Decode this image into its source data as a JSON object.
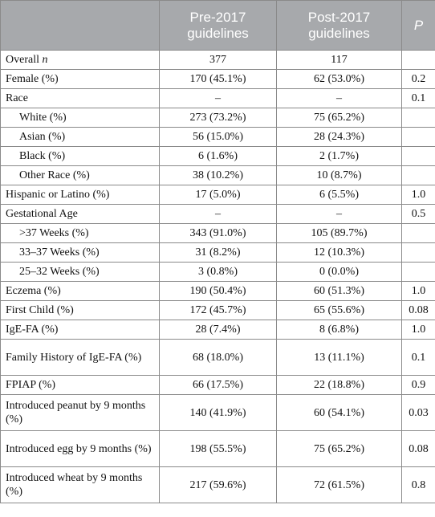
{
  "header": {
    "col1": "",
    "col2": "Pre-2017 guidelines",
    "col3": "Post-2017 guidelines",
    "col4": "P"
  },
  "rows": [
    {
      "label": "Overall ",
      "label_italic": "n",
      "pre": "377",
      "post": "117",
      "p": ""
    },
    {
      "label": "Female (%)",
      "pre": "170 (45.1%)",
      "post": "62 (53.0%)",
      "p": "0.2"
    },
    {
      "label": "Race",
      "pre": "–",
      "post": "–",
      "p": "0.1"
    },
    {
      "label": "White (%)",
      "pre": "273 (73.2%)",
      "post": "75 (65.2%)",
      "p": ""
    },
    {
      "label": "Asian (%)",
      "pre": "56 (15.0%)",
      "post": "28 (24.3%)",
      "p": ""
    },
    {
      "label": "Black (%)",
      "pre": "6 (1.6%)",
      "post": "2 (1.7%)",
      "p": ""
    },
    {
      "label": "Other Race (%)",
      "pre": "38 (10.2%)",
      "post": "10 (8.7%)",
      "p": ""
    },
    {
      "label": "Hispanic or Latino (%)",
      "pre": "17 (5.0%)",
      "post": "6 (5.5%)",
      "p": "1.0"
    },
    {
      "label": "Gestational Age",
      "pre": "–",
      "post": "–",
      "p": "0.5"
    },
    {
      "label": ">37 Weeks (%)",
      "pre": "343 (91.0%)",
      "post": "105 (89.7%)",
      "p": ""
    },
    {
      "label": "33–37 Weeks (%)",
      "pre": "31 (8.2%)",
      "post": "12 (10.3%)",
      "p": ""
    },
    {
      "label": "25–32 Weeks (%)",
      "pre": "3 (0.8%)",
      "post": "0 (0.0%)",
      "p": ""
    },
    {
      "label": "Eczema (%)",
      "pre": "190 (50.4%)",
      "post": "60 (51.3%)",
      "p": "1.0"
    },
    {
      "label": "First Child (%)",
      "pre": "172 (45.7%)",
      "post": "65 (55.6%)",
      "p": "0.08"
    },
    {
      "label": "IgE-FA (%)",
      "pre": "28 (7.4%)",
      "post": "8 (6.8%)",
      "p": "1.0"
    },
    {
      "label": "Family History of IgE-FA (%)",
      "pre": "68 (18.0%)",
      "post": "13 (11.1%)",
      "p": "0.1"
    },
    {
      "label": "FPIAP (%)",
      "pre": "66 (17.5%)",
      "post": "22 (18.8%)",
      "p": "0.9"
    },
    {
      "label": "Introduced peanut by 9 months (%)",
      "pre": "140 (41.9%)",
      "post": "60 (54.1%)",
      "p": "0.03"
    },
    {
      "label": "Introduced egg by 9 months (%)",
      "pre": "198 (55.5%)",
      "post": "75 (65.2%)",
      "p": "0.08"
    },
    {
      "label": "Introduced wheat by 9 months (%)",
      "pre": "217 (59.6%)",
      "post": "72 (61.5%)",
      "p": "0.8"
    }
  ]
}
